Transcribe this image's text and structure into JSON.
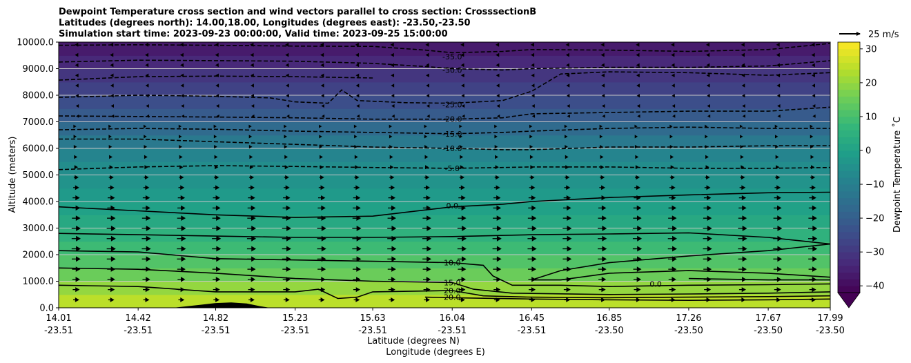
{
  "chart_data": {
    "type": "contour",
    "title_lines": [
      "Dewpoint Temperature cross section and wind vectors parallel to cross section: CrosssectionB",
      "Latitudes (degrees north): 14.00,18.00, Longitudes (degrees east): -23.50,-23.50",
      "Simulation start time: 2023-09-23 00:00:00, Valid time: 2023-09-25 15:00:00"
    ],
    "xlabel_lines": [
      "Latitude (degrees N)",
      "Longitude (degrees E)"
    ],
    "ylabel": "Altitude (meters)",
    "x_ticks": [
      {
        "lat": "14.01",
        "lon": "-23.51"
      },
      {
        "lat": "14.42",
        "lon": "-23.51"
      },
      {
        "lat": "14.82",
        "lon": "-23.51"
      },
      {
        "lat": "15.23",
        "lon": "-23.51"
      },
      {
        "lat": "15.63",
        "lon": "-23.51"
      },
      {
        "lat": "16.04",
        "lon": "-23.51"
      },
      {
        "lat": "16.45",
        "lon": "-23.51"
      },
      {
        "lat": "16.85",
        "lon": "-23.50"
      },
      {
        "lat": "17.26",
        "lon": "-23.50"
      },
      {
        "lat": "17.67",
        "lon": "-23.50"
      },
      {
        "lat": "17.99",
        "lon": "-23.50"
      }
    ],
    "xlim": [
      14.01,
      17.99
    ],
    "y_ticks": [
      "0.0",
      "1000.0",
      "2000.0",
      "3000.0",
      "4000.0",
      "5000.0",
      "6000.0",
      "7000.0",
      "8000.0",
      "9000.0",
      "10000.0"
    ],
    "y_tick_values": [
      0,
      1000,
      2000,
      3000,
      4000,
      5000,
      6000,
      7000,
      8000,
      9000,
      10000
    ],
    "ylim": [
      0,
      10000
    ],
    "grid": "horizontal",
    "colormap": "viridis",
    "colorbar": {
      "label": "Dewpoint Temperature ˚C",
      "ticks": [
        "30",
        "20",
        "10",
        "0",
        "−10",
        "−20",
        "−30",
        "−40"
      ],
      "tick_values": [
        30,
        20,
        10,
        0,
        -10,
        -20,
        -30,
        -40
      ],
      "range": [
        -42,
        32
      ],
      "extend": "min"
    },
    "quiver_key": {
      "label": "25 m/s",
      "speed": 25
    },
    "contour_labels": [
      {
        "text": "-35.0",
        "lat": 16.04,
        "alt": 9450
      },
      {
        "text": "-30.0",
        "lat": 16.04,
        "alt": 8950
      },
      {
        "text": "-25.0",
        "lat": 16.04,
        "alt": 7650
      },
      {
        "text": "-20.0",
        "lat": 16.04,
        "alt": 7100
      },
      {
        "text": "-15.0",
        "lat": 16.04,
        "alt": 6550
      },
      {
        "text": "-10.0",
        "lat": 16.04,
        "alt": 6000
      },
      {
        "text": "-5.0",
        "lat": 16.04,
        "alt": 5250
      },
      {
        "text": "0.0",
        "lat": 16.04,
        "alt": 3850
      },
      {
        "text": "10.0",
        "lat": 16.04,
        "alt": 1700
      },
      {
        "text": "15.0",
        "lat": 16.04,
        "alt": 950
      },
      {
        "text": "20.0",
        "lat": 16.04,
        "alt": 650
      },
      {
        "text": "20.0",
        "lat": 16.04,
        "alt": 400
      },
      {
        "text": "0.0",
        "lat": 17.09,
        "alt": 900
      }
    ],
    "contours": [
      {
        "level": -35,
        "style": "dashed",
        "points": [
          [
            14.01,
            9880
          ],
          [
            14.42,
            9900
          ],
          [
            14.82,
            9880
          ],
          [
            15.23,
            9850
          ],
          [
            15.63,
            9840
          ],
          [
            15.9,
            9700
          ],
          [
            16.04,
            9600
          ],
          [
            16.3,
            9650
          ],
          [
            16.45,
            9720
          ],
          [
            16.85,
            9700
          ],
          [
            17.26,
            9650
          ],
          [
            17.67,
            9720
          ],
          [
            17.99,
            9950
          ]
        ]
      },
      {
        "level": -30,
        "style": "dashed",
        "points": [
          [
            14.01,
            9250
          ],
          [
            14.42,
            9320
          ],
          [
            14.82,
            9300
          ],
          [
            15.23,
            9280
          ],
          [
            15.63,
            9200
          ],
          [
            15.9,
            9080
          ],
          [
            16.04,
            9000
          ],
          [
            16.3,
            8950
          ],
          [
            16.45,
            9000
          ],
          [
            16.85,
            9050
          ],
          [
            17.26,
            9050
          ],
          [
            17.67,
            9100
          ],
          [
            17.99,
            9300
          ]
        ]
      },
      {
        "level": -30,
        "style": "dashed",
        "points": [
          [
            14.01,
            8570
          ],
          [
            14.42,
            8700
          ],
          [
            14.82,
            8720
          ],
          [
            15.23,
            8700
          ],
          [
            15.63,
            8650
          ]
        ]
      },
      {
        "level": -25,
        "style": "dashed",
        "points": [
          [
            14.01,
            7920
          ],
          [
            14.42,
            8000
          ],
          [
            14.82,
            7960
          ],
          [
            15.1,
            7900
          ],
          [
            15.23,
            7750
          ],
          [
            15.4,
            7700
          ],
          [
            15.47,
            8200
          ],
          [
            15.55,
            7800
          ],
          [
            15.8,
            7720
          ],
          [
            16.04,
            7700
          ],
          [
            16.3,
            7800
          ],
          [
            16.45,
            8150
          ],
          [
            16.6,
            8800
          ],
          [
            16.85,
            8880
          ],
          [
            17.26,
            8850
          ],
          [
            17.67,
            8750
          ],
          [
            17.99,
            8850
          ]
        ]
      },
      {
        "level": -20,
        "style": "dashed",
        "points": [
          [
            14.01,
            7220
          ],
          [
            14.42,
            7200
          ],
          [
            14.82,
            7180
          ],
          [
            15.23,
            7150
          ],
          [
            15.63,
            7100
          ],
          [
            16.04,
            7100
          ],
          [
            16.3,
            7150
          ],
          [
            16.45,
            7300
          ],
          [
            16.85,
            7350
          ],
          [
            17.26,
            7400
          ],
          [
            17.67,
            7400
          ],
          [
            17.99,
            7550
          ]
        ]
      },
      {
        "level": -15,
        "style": "dashed",
        "points": [
          [
            14.01,
            6700
          ],
          [
            14.42,
            6750
          ],
          [
            14.82,
            6720
          ],
          [
            15.23,
            6650
          ],
          [
            15.63,
            6600
          ],
          [
            16.04,
            6550
          ],
          [
            16.3,
            6600
          ],
          [
            16.45,
            6650
          ],
          [
            16.85,
            6750
          ],
          [
            17.26,
            6800
          ],
          [
            17.67,
            6750
          ],
          [
            17.99,
            6750
          ]
        ]
      },
      {
        "level": -10,
        "style": "dashed",
        "points": [
          [
            14.01,
            6350
          ],
          [
            14.42,
            6350
          ],
          [
            14.82,
            6250
          ],
          [
            15.23,
            6150
          ],
          [
            15.63,
            6050
          ],
          [
            16.04,
            6000
          ],
          [
            16.3,
            5950
          ],
          [
            16.45,
            5950
          ],
          [
            16.85,
            6050
          ],
          [
            17.26,
            6050
          ],
          [
            17.67,
            6100
          ],
          [
            17.99,
            6100
          ]
        ]
      },
      {
        "level": -5,
        "style": "dashed",
        "points": [
          [
            14.01,
            5200
          ],
          [
            14.42,
            5300
          ],
          [
            14.82,
            5350
          ],
          [
            15.23,
            5320
          ],
          [
            15.63,
            5280
          ],
          [
            16.04,
            5250
          ],
          [
            16.3,
            5280
          ],
          [
            16.45,
            5300
          ],
          [
            16.85,
            5300
          ],
          [
            17.26,
            5250
          ],
          [
            17.67,
            5250
          ],
          [
            17.99,
            5280
          ]
        ]
      },
      {
        "level": 0,
        "style": "solid",
        "points": [
          [
            14.01,
            3800
          ],
          [
            14.42,
            3650
          ],
          [
            14.82,
            3500
          ],
          [
            15.23,
            3400
          ],
          [
            15.63,
            3450
          ],
          [
            16.04,
            3800
          ],
          [
            16.3,
            3900
          ],
          [
            16.45,
            4000
          ],
          [
            16.85,
            4150
          ],
          [
            17.26,
            4250
          ],
          [
            17.67,
            4330
          ],
          [
            17.99,
            4350
          ]
        ]
      },
      {
        "level": 5,
        "style": "solid",
        "points": [
          [
            14.01,
            2800
          ],
          [
            14.42,
            2750
          ],
          [
            14.82,
            2700
          ],
          [
            15.23,
            2650
          ],
          [
            15.63,
            2650
          ],
          [
            16.04,
            2680
          ],
          [
            16.45,
            2750
          ],
          [
            16.85,
            2780
          ],
          [
            17.26,
            2820
          ],
          [
            17.67,
            2650
          ],
          [
            17.99,
            2400
          ],
          [
            17.67,
            2150
          ],
          [
            17.26,
            1950
          ],
          [
            16.85,
            1700
          ],
          [
            16.6,
            1400
          ],
          [
            16.45,
            1050
          ],
          [
            16.6,
            1050
          ],
          [
            16.85,
            1300
          ],
          [
            17.26,
            1400
          ],
          [
            17.67,
            1300
          ],
          [
            17.99,
            1150
          ]
        ]
      },
      {
        "level": 10,
        "style": "solid",
        "points": [
          [
            14.01,
            2150
          ],
          [
            14.42,
            2100
          ],
          [
            14.82,
            1850
          ],
          [
            15.23,
            1800
          ],
          [
            15.63,
            1750
          ],
          [
            16.04,
            1700
          ],
          [
            16.2,
            1600
          ],
          [
            16.25,
            1200
          ],
          [
            16.35,
            850
          ],
          [
            16.6,
            850
          ],
          [
            16.85,
            800
          ],
          [
            17.26,
            850
          ],
          [
            17.67,
            870
          ],
          [
            17.99,
            900
          ]
        ]
      },
      {
        "level": 15,
        "style": "solid",
        "points": [
          [
            14.01,
            1500
          ],
          [
            14.42,
            1450
          ],
          [
            14.82,
            1300
          ],
          [
            15.23,
            1100
          ],
          [
            15.63,
            1000
          ],
          [
            16.04,
            950
          ],
          [
            16.15,
            700
          ],
          [
            16.35,
            550
          ],
          [
            16.85,
            500
          ],
          [
            17.26,
            520
          ],
          [
            17.67,
            550
          ],
          [
            17.99,
            600
          ]
        ]
      },
      {
        "level": 20,
        "style": "solid",
        "points": [
          [
            14.01,
            850
          ],
          [
            14.42,
            800
          ],
          [
            14.82,
            600
          ],
          [
            15.23,
            600
          ],
          [
            15.35,
            700
          ],
          [
            15.45,
            350
          ],
          [
            15.55,
            400
          ],
          [
            15.63,
            600
          ],
          [
            16.04,
            650
          ],
          [
            16.2,
            450
          ],
          [
            16.45,
            400
          ],
          [
            16.85,
            380
          ],
          [
            17.26,
            400
          ],
          [
            17.67,
            420
          ],
          [
            17.99,
            450
          ]
        ]
      },
      {
        "level": 20,
        "style": "solid",
        "points": [
          [
            15.9,
            400
          ],
          [
            16.04,
            380
          ],
          [
            16.45,
            330
          ],
          [
            16.85,
            300
          ],
          [
            17.26,
            280
          ],
          [
            17.67,
            300
          ],
          [
            17.99,
            330
          ]
        ]
      },
      {
        "level": 0,
        "style": "solid",
        "points": [
          [
            17.26,
            1100
          ],
          [
            17.67,
            1050
          ],
          [
            17.99,
            1050
          ]
        ]
      }
    ],
    "filled_levels_profile": [
      {
        "alt": 0,
        "value": 26
      },
      {
        "alt": 500,
        "value": 23
      },
      {
        "alt": 1000,
        "value": 17
      },
      {
        "alt": 1500,
        "value": 13
      },
      {
        "alt": 2000,
        "value": 10
      },
      {
        "alt": 2500,
        "value": 7
      },
      {
        "alt": 3000,
        "value": 4
      },
      {
        "alt": 3500,
        "value": 1
      },
      {
        "alt": 4000,
        "value": -1
      },
      {
        "alt": 4500,
        "value": -3
      },
      {
        "alt": 5000,
        "value": -5
      },
      {
        "alt": 5500,
        "value": -7
      },
      {
        "alt": 6000,
        "value": -10
      },
      {
        "alt": 6500,
        "value": -14
      },
      {
        "alt": 7000,
        "value": -19
      },
      {
        "alt": 7500,
        "value": -23
      },
      {
        "alt": 8000,
        "value": -26
      },
      {
        "alt": 8500,
        "value": -29
      },
      {
        "alt": 9000,
        "value": -32
      },
      {
        "alt": 9500,
        "value": -35
      },
      {
        "alt": 10000,
        "value": -38
      }
    ],
    "terrain": [
      [
        14.6,
        0
      ],
      [
        14.75,
        120
      ],
      [
        14.82,
        180
      ],
      [
        14.9,
        200
      ],
      [
        14.98,
        160
      ],
      [
        15.05,
        60
      ],
      [
        15.1,
        0
      ]
    ],
    "wind_grid": {
      "lat_start": 14.01,
      "lat_end": 17.99,
      "columns": 22,
      "alt_start": 300,
      "alt_end": 9900,
      "rows": 26,
      "profile": [
        {
          "alt": 300,
          "u": 4
        },
        {
          "alt": 1000,
          "u": 5
        },
        {
          "alt": 2000,
          "u": 6
        },
        {
          "alt": 3000,
          "u": 6
        },
        {
          "alt": 4000,
          "u": 5
        },
        {
          "alt": 5000,
          "u": 3
        },
        {
          "alt": 6000,
          "u": 1
        },
        {
          "alt": 7000,
          "u": 0
        },
        {
          "alt": 8000,
          "u": -1
        },
        {
          "alt": 9000,
          "u": -1.5
        },
        {
          "alt": 9900,
          "u": -2
        }
      ]
    }
  }
}
